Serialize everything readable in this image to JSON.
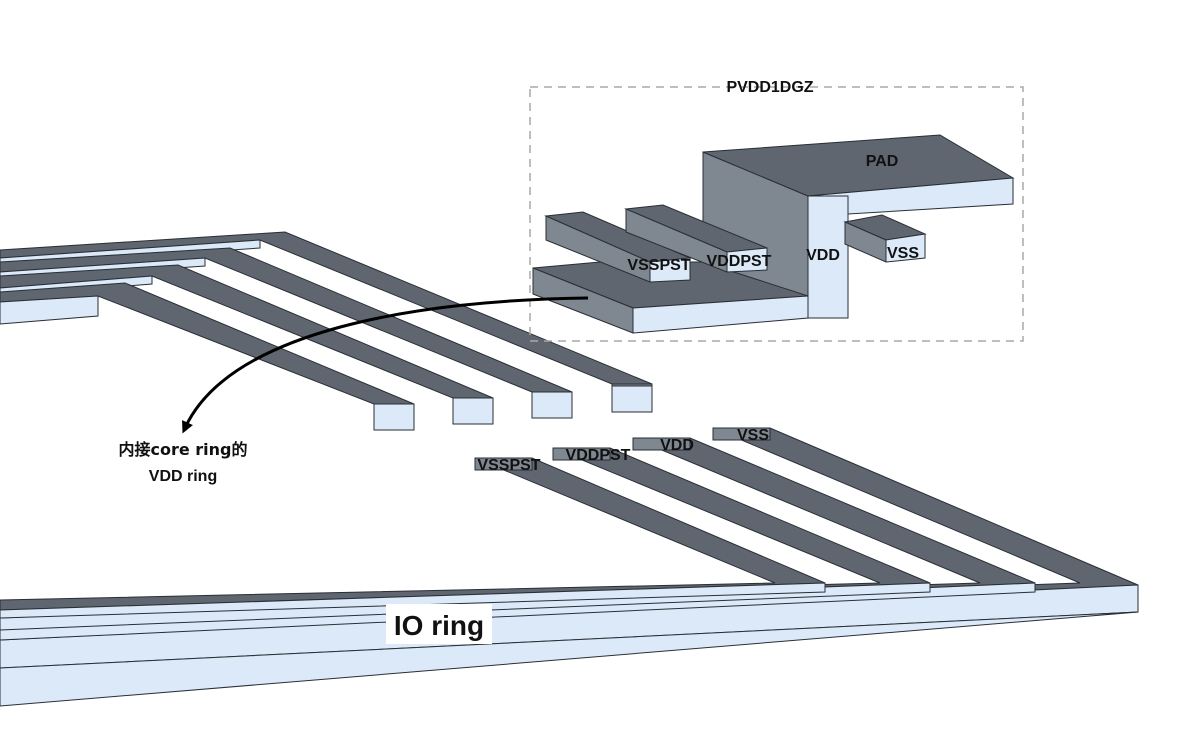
{
  "colors": {
    "top_face": "#5f6670",
    "side_face": "#7f8790",
    "front_face": "#dbe9f8",
    "edge": "#2a2f36",
    "dashed_box": "#a8a8a8",
    "arrow": "#000000",
    "label_bg": "#ffffff"
  },
  "cell": {
    "name": "PVDD1DGZ",
    "pad_label": "PAD",
    "pins": [
      "VSSPST",
      "VDDPST",
      "VDD",
      "VSS"
    ]
  },
  "io_ring": {
    "label": "IO ring",
    "rails": [
      "VSSPST",
      "VDDPST",
      "VDD",
      "VSS"
    ]
  },
  "annotation": {
    "line1": "内接core ring的",
    "line2": "VDD ring"
  }
}
